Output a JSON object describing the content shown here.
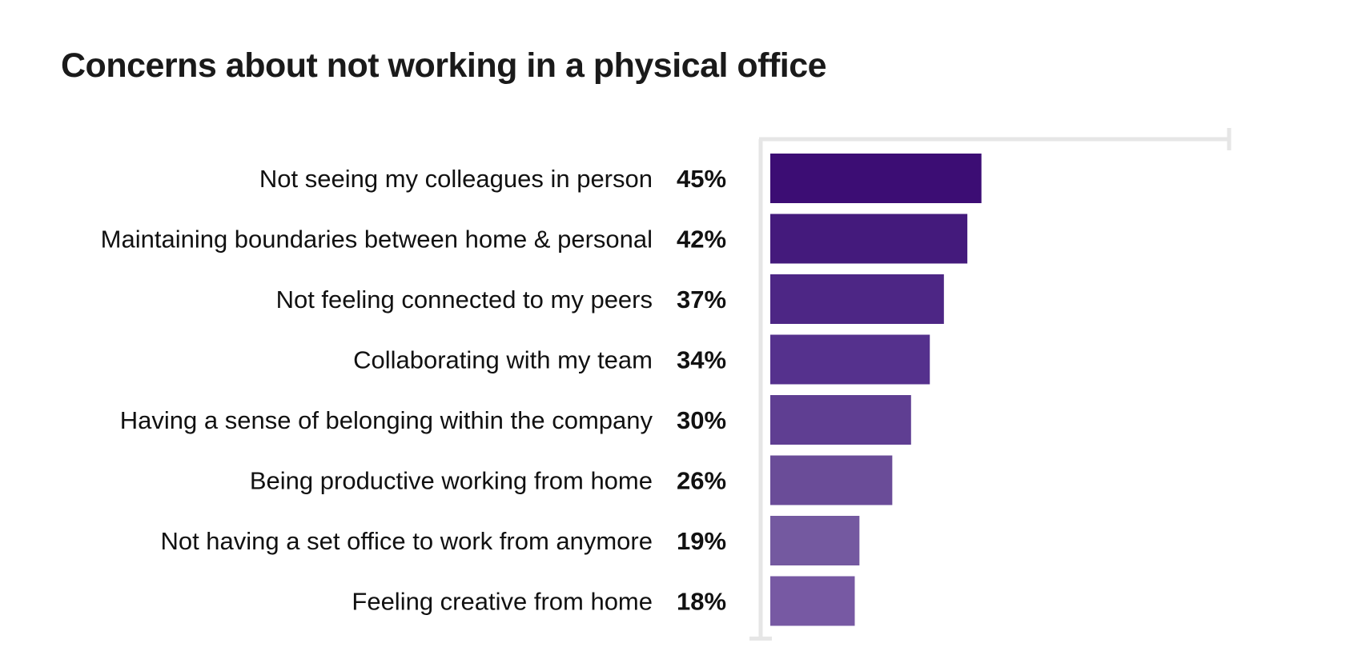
{
  "chart_data": {
    "type": "bar",
    "orientation": "horizontal",
    "title": "Concerns about not working in a physical office",
    "categories": [
      "Not seeing my colleagues in person",
      "Maintaining boundaries between home & personal",
      "Not feeling connected to my peers",
      "Collaborating with my team",
      "Having a sense of belonging within the company",
      "Being productive working from home",
      "Not having a set office to work from anymore",
      "Feeling creative from home"
    ],
    "values": [
      45,
      42,
      37,
      34,
      30,
      26,
      19,
      18
    ],
    "value_labels": [
      "45%",
      "42%",
      "37%",
      "34%",
      "30%",
      "26%",
      "19%",
      "18%"
    ],
    "unit": "%",
    "xlim": [
      0,
      100
    ],
    "grid": false,
    "legend": "none",
    "colors": [
      "#3c0d74",
      "#441a7c",
      "#4d2685",
      "#55318d",
      "#5f3e92",
      "#6a4c98",
      "#7459a0",
      "#7759a3"
    ],
    "axis_color": "#e6e6e6"
  }
}
